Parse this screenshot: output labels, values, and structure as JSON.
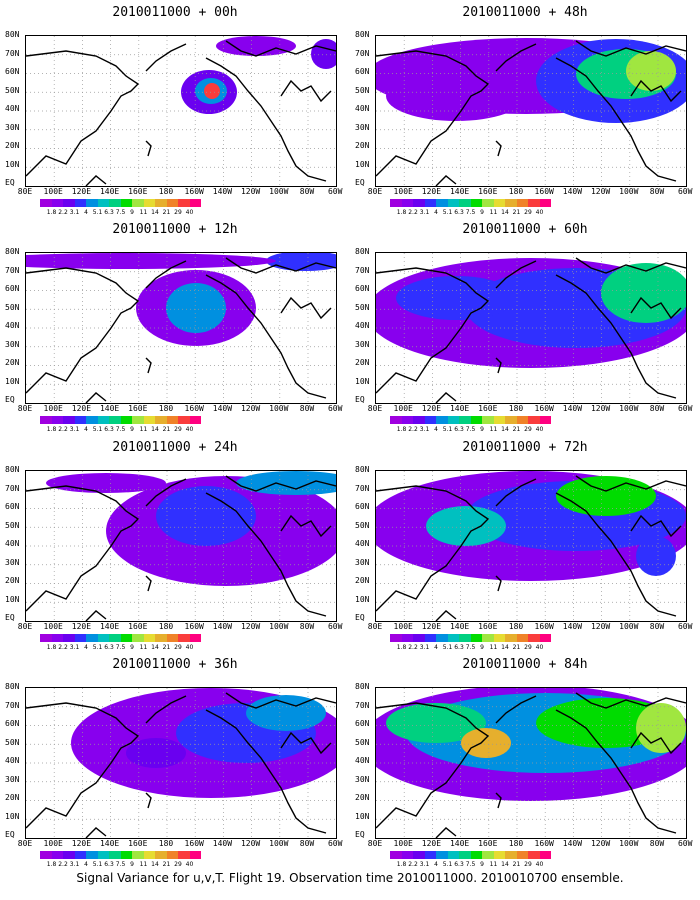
{
  "caption": "Signal Variance for u,v,T. Flight 19. Observation time 2010011000. 2010010700 ensemble.",
  "lat_labels": [
    "80N",
    "70N",
    "60N",
    "50N",
    "40N",
    "30N",
    "20N",
    "10N",
    "EQ"
  ],
  "lon_labels": [
    "80E",
    "100E",
    "120E",
    "140E",
    "160E",
    "180",
    "160W",
    "140W",
    "120W",
    "100W",
    "80W",
    "60W"
  ],
  "colorbar": {
    "labels": [
      "1.8",
      "2.2",
      "3.1",
      "4",
      "5.1",
      "6.3",
      "7.5",
      "9",
      "11",
      "14",
      "21",
      "29",
      "40"
    ],
    "colors": [
      "#a000e0",
      "#8800ee",
      "#6a00f0",
      "#3030ff",
      "#0090e0",
      "#00c0c0",
      "#00d080",
      "#00dc00",
      "#a0e640",
      "#e6dc32",
      "#e6af2d",
      "#f08228",
      "#fa3c3c",
      "#ff0080"
    ]
  },
  "panels": [
    {
      "title": "2010011000 + 00h",
      "blobs": [
        {
          "cx": 183,
          "cy": 56,
          "rx": 28,
          "ry": 22,
          "lvl": 2
        },
        {
          "cx": 185,
          "cy": 55,
          "rx": 16,
          "ry": 13,
          "lvl": 4
        },
        {
          "cx": 186,
          "cy": 55,
          "rx": 8,
          "ry": 8,
          "lvl": 12
        },
        {
          "cx": 230,
          "cy": 10,
          "rx": 40,
          "ry": 10,
          "lvl": 1
        },
        {
          "cx": 300,
          "cy": 18,
          "rx": 15,
          "ry": 15,
          "lvl": 2
        }
      ]
    },
    {
      "title": "2010011000 + 48h",
      "blobs": [
        {
          "cx": 150,
          "cy": 40,
          "rx": 160,
          "ry": 38,
          "lvl": 1
        },
        {
          "cx": 240,
          "cy": 45,
          "rx": 80,
          "ry": 42,
          "lvl": 3
        },
        {
          "cx": 250,
          "cy": 38,
          "rx": 50,
          "ry": 25,
          "lvl": 6
        },
        {
          "cx": 275,
          "cy": 35,
          "rx": 25,
          "ry": 20,
          "lvl": 8
        },
        {
          "cx": 80,
          "cy": 60,
          "rx": 70,
          "ry": 25,
          "lvl": 1
        }
      ]
    },
    {
      "title": "2010011000 + 12h",
      "blobs": [
        {
          "cx": 170,
          "cy": 55,
          "rx": 60,
          "ry": 38,
          "lvl": 1
        },
        {
          "cx": 170,
          "cy": 55,
          "rx": 30,
          "ry": 25,
          "lvl": 4
        },
        {
          "cx": 280,
          "cy": 8,
          "rx": 40,
          "ry": 10,
          "lvl": 3
        },
        {
          "cx": 100,
          "cy": 8,
          "rx": 150,
          "ry": 8,
          "lvl": 1
        }
      ]
    },
    {
      "title": "2010011000 + 60h",
      "blobs": [
        {
          "cx": 155,
          "cy": 60,
          "rx": 165,
          "ry": 55,
          "lvl": 1
        },
        {
          "cx": 200,
          "cy": 55,
          "rx": 110,
          "ry": 40,
          "lvl": 3
        },
        {
          "cx": 270,
          "cy": 40,
          "rx": 45,
          "ry": 30,
          "lvl": 6
        },
        {
          "cx": 80,
          "cy": 45,
          "rx": 60,
          "ry": 22,
          "lvl": 3
        }
      ]
    },
    {
      "title": "2010011000 + 24h",
      "blobs": [
        {
          "cx": 200,
          "cy": 60,
          "rx": 120,
          "ry": 55,
          "lvl": 1
        },
        {
          "cx": 180,
          "cy": 45,
          "rx": 50,
          "ry": 30,
          "lvl": 3
        },
        {
          "cx": 270,
          "cy": 12,
          "rx": 60,
          "ry": 12,
          "lvl": 4
        },
        {
          "cx": 80,
          "cy": 12,
          "rx": 60,
          "ry": 10,
          "lvl": 1
        }
      ]
    },
    {
      "title": "2010011000 + 72h",
      "blobs": [
        {
          "cx": 155,
          "cy": 55,
          "rx": 165,
          "ry": 55,
          "lvl": 1
        },
        {
          "cx": 200,
          "cy": 45,
          "rx": 110,
          "ry": 35,
          "lvl": 3
        },
        {
          "cx": 230,
          "cy": 25,
          "rx": 50,
          "ry": 20,
          "lvl": 7
        },
        {
          "cx": 90,
          "cy": 55,
          "rx": 40,
          "ry": 20,
          "lvl": 5
        },
        {
          "cx": 280,
          "cy": 85,
          "rx": 20,
          "ry": 20,
          "lvl": 3
        }
      ]
    },
    {
      "title": "2010011000 + 36h",
      "blobs": [
        {
          "cx": 185,
          "cy": 55,
          "rx": 140,
          "ry": 55,
          "lvl": 1
        },
        {
          "cx": 220,
          "cy": 45,
          "rx": 70,
          "ry": 30,
          "lvl": 3
        },
        {
          "cx": 260,
          "cy": 25,
          "rx": 40,
          "ry": 18,
          "lvl": 4
        },
        {
          "cx": 130,
          "cy": 65,
          "rx": 30,
          "ry": 15,
          "lvl": 2
        }
      ]
    },
    {
      "title": "2010011000 + 84h",
      "blobs": [
        {
          "cx": 155,
          "cy": 55,
          "rx": 170,
          "ry": 58,
          "lvl": 1
        },
        {
          "cx": 170,
          "cy": 45,
          "rx": 140,
          "ry": 40,
          "lvl": 4
        },
        {
          "cx": 230,
          "cy": 35,
          "rx": 70,
          "ry": 25,
          "lvl": 7
        },
        {
          "cx": 60,
          "cy": 35,
          "rx": 50,
          "ry": 20,
          "lvl": 6
        },
        {
          "cx": 110,
          "cy": 55,
          "rx": 25,
          "ry": 15,
          "lvl": 10
        },
        {
          "cx": 285,
          "cy": 40,
          "rx": 25,
          "ry": 25,
          "lvl": 8
        }
      ]
    }
  ]
}
